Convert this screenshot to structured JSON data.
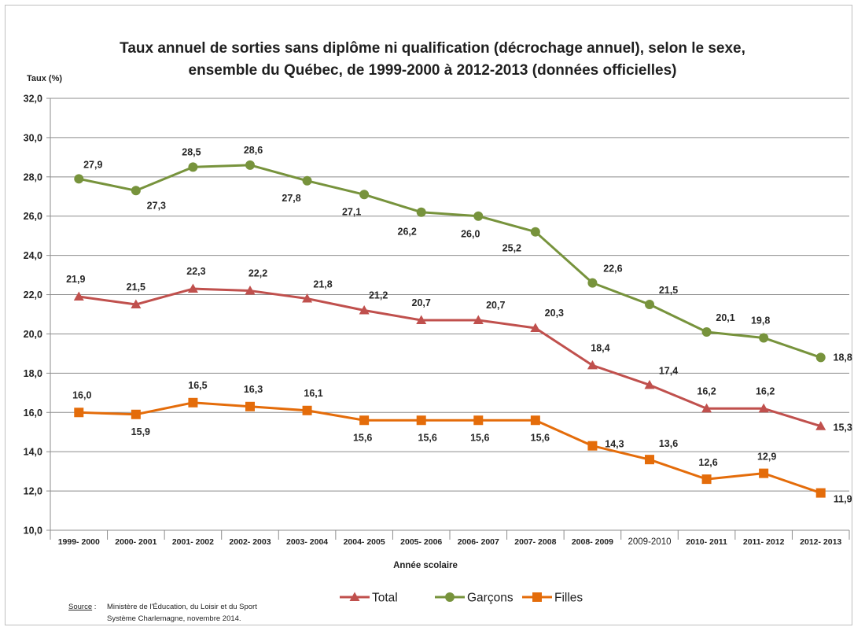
{
  "chart_data": {
    "type": "line",
    "title_line1": "Taux annuel de sorties sans diplôme ni qualification (décrochage annuel), selon le sexe,",
    "title_line2": "ensemble du Québec, de 1999-2000 à 2012-2013  (données officielles)",
    "ylabel": "Taux (%)",
    "xlabel": "Année scolaire",
    "ylim": [
      10,
      32
    ],
    "yticks": [
      "10,0",
      "12,0",
      "14,0",
      "16,0",
      "18,0",
      "20,0",
      "22,0",
      "24,0",
      "26,0",
      "28,0",
      "30,0",
      "32,0"
    ],
    "grid": true,
    "legend_position": "bottom",
    "categories": [
      "1999- 2000",
      "2000- 2001",
      "2001- 2002",
      "2002- 2003",
      "2003- 2004",
      "2004- 2005",
      "2005- 2006",
      "2006- 2007",
      "2007- 2008",
      "2008- 2009",
      "2009-2010",
      "2010- 2011",
      "2011- 2012",
      "2012- 2013"
    ],
    "series": [
      {
        "name": "Total",
        "marker": "triangle",
        "color": "#c0504d",
        "values": [
          21.9,
          21.5,
          22.3,
          22.2,
          21.8,
          21.2,
          20.7,
          20.7,
          20.3,
          18.4,
          17.4,
          16.2,
          16.2,
          15.3
        ],
        "labels": [
          "21,9",
          "21,5",
          "22,3",
          "22,2",
          "21,8",
          "21,2",
          "20,7",
          "20,7",
          "20,3",
          "18,4",
          "17,4",
          "16,2",
          "16,2",
          "15,3"
        ]
      },
      {
        "name": "Garçons",
        "marker": "circle",
        "color": "#77933c",
        "values": [
          27.9,
          27.3,
          28.5,
          28.6,
          27.8,
          27.1,
          26.2,
          26.0,
          25.2,
          22.6,
          21.5,
          20.1,
          19.8,
          18.8
        ],
        "labels": [
          "27,9",
          "27,3",
          "28,5",
          "28,6",
          "27,8",
          "27,1",
          "26,2",
          "26,0",
          "25,2",
          "22,6",
          "21,5",
          "20,1",
          "19,8",
          "18,8"
        ]
      },
      {
        "name": "Filles",
        "marker": "square",
        "color": "#e46c0a",
        "values": [
          16.0,
          15.9,
          16.5,
          16.3,
          16.1,
          15.6,
          15.6,
          15.6,
          15.6,
          14.3,
          13.6,
          12.6,
          12.9,
          11.9
        ],
        "labels": [
          "16,0",
          "15,9",
          "16,5",
          "16,3",
          "16,1",
          "15,6",
          "15,6",
          "15,6",
          "15,6",
          "14,3",
          "13,6",
          "12,6",
          "12,9",
          "11,9"
        ]
      }
    ]
  },
  "source": {
    "label": "Source",
    "separator": " :",
    "line1": "Ministère de l'Éducation, du Loisir et du Sport",
    "line2": "Système Charlemagne, novembre 2014."
  }
}
